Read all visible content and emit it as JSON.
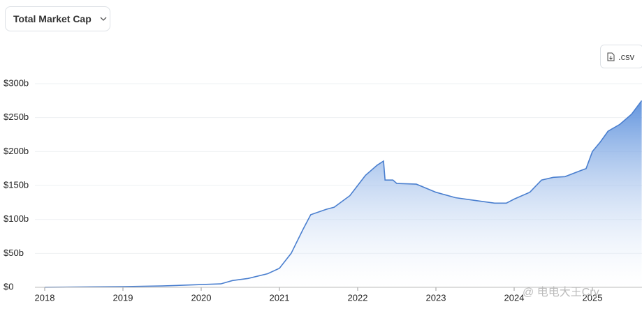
{
  "controls": {
    "metric": "Total Market Cap",
    "download": ".csv"
  },
  "watermark": "@ 电电大王Cry",
  "chart_data": {
    "type": "area",
    "x": [
      2018,
      2019,
      2019.5,
      2020,
      2020.25,
      2020.4,
      2020.6,
      2020.85,
      2021,
      2021.15,
      2021.3,
      2021.4,
      2021.6,
      2021.7,
      2021.9,
      2022,
      2022.1,
      2022.25,
      2022.33,
      2022.35,
      2022.45,
      2022.5,
      2022.75,
      2023,
      2023.25,
      2023.5,
      2023.75,
      2023.9,
      2024,
      2024.2,
      2024.35,
      2024.5,
      2024.65,
      2024.85,
      2024.92,
      2025,
      2025.1,
      2025.2,
      2025.35,
      2025.5,
      2025.63
    ],
    "values": [
      0,
      1,
      2,
      4,
      5,
      10,
      13,
      20,
      28,
      50,
      85,
      107,
      115,
      118,
      135,
      150,
      165,
      180,
      186,
      158,
      158,
      153,
      152,
      140,
      132,
      128,
      124,
      124,
      130,
      140,
      158,
      162,
      163,
      172,
      175,
      200,
      214,
      230,
      240,
      255,
      275
    ],
    "color": "#4a7fcf",
    "xlim": [
      2017.875,
      2025.634
    ],
    "xticks": [
      2018,
      2019,
      2020,
      2021,
      2022,
      2023,
      2024,
      2025
    ],
    "ylim": [
      0,
      300
    ],
    "yticks": [
      {
        "value": 0,
        "label": "$0"
      },
      {
        "value": 50,
        "label": "$50b"
      },
      {
        "value": 100,
        "label": "$100b"
      },
      {
        "value": 150,
        "label": "$150b"
      },
      {
        "value": 200,
        "label": "$200b"
      },
      {
        "value": 250,
        "label": "$250b"
      },
      {
        "value": 300,
        "label": "$300b"
      }
    ],
    "grid": true
  }
}
